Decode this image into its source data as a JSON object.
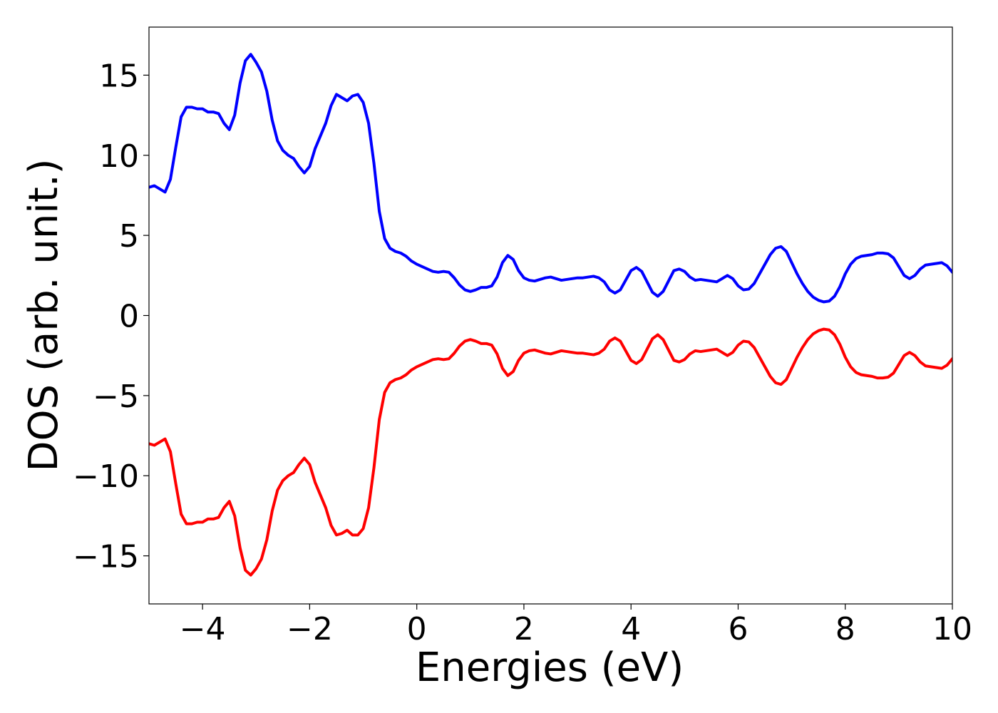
{
  "chart_data": {
    "type": "line",
    "title": "",
    "xlabel": "Energies (eV)",
    "ylabel": "DOS (arb. unit.)",
    "xlim": [
      -5,
      10
    ],
    "ylim": [
      -18,
      18
    ],
    "x_ticks": [
      {
        "value": -4,
        "label": "−4"
      },
      {
        "value": -2,
        "label": "−2"
      },
      {
        "value": 0,
        "label": "0"
      },
      {
        "value": 2,
        "label": "2"
      },
      {
        "value": 4,
        "label": "4"
      },
      {
        "value": 6,
        "label": "6"
      },
      {
        "value": 8,
        "label": "8"
      },
      {
        "value": 10,
        "label": "10"
      }
    ],
    "y_ticks": [
      {
        "value": 15,
        "label": "15"
      },
      {
        "value": 10,
        "label": "10"
      },
      {
        "value": 5,
        "label": "5"
      },
      {
        "value": 0,
        "label": "0"
      },
      {
        "value": -5,
        "label": "−5"
      },
      {
        "value": -10,
        "label": "−10"
      },
      {
        "value": -15,
        "label": "−15"
      }
    ],
    "grid": false,
    "legend": "none",
    "series": [
      {
        "color": "#0000ff",
        "points": [
          [
            -5.0,
            8.0
          ],
          [
            -4.9,
            8.1
          ],
          [
            -4.8,
            7.9
          ],
          [
            -4.7,
            7.7
          ],
          [
            -4.6,
            8.5
          ],
          [
            -4.5,
            10.5
          ],
          [
            -4.4,
            12.4
          ],
          [
            -4.3,
            13.0
          ],
          [
            -4.2,
            13.0
          ],
          [
            -4.1,
            12.9
          ],
          [
            -4.0,
            12.9
          ],
          [
            -3.9,
            12.7
          ],
          [
            -3.8,
            12.7
          ],
          [
            -3.7,
            12.6
          ],
          [
            -3.6,
            12.0
          ],
          [
            -3.5,
            11.6
          ],
          [
            -3.4,
            12.5
          ],
          [
            -3.3,
            14.5
          ],
          [
            -3.2,
            15.9
          ],
          [
            -3.1,
            16.3
          ],
          [
            -3.0,
            15.8
          ],
          [
            -2.9,
            15.2
          ],
          [
            -2.8,
            14.0
          ],
          [
            -2.7,
            12.2
          ],
          [
            -2.6,
            10.9
          ],
          [
            -2.5,
            10.3
          ],
          [
            -2.4,
            10.0
          ],
          [
            -2.3,
            9.8
          ],
          [
            -2.2,
            9.3
          ],
          [
            -2.1,
            8.9
          ],
          [
            -2.0,
            9.3
          ],
          [
            -1.9,
            10.4
          ],
          [
            -1.8,
            11.2
          ],
          [
            -1.7,
            12.0
          ],
          [
            -1.6,
            13.1
          ],
          [
            -1.5,
            13.8
          ],
          [
            -1.4,
            13.6
          ],
          [
            -1.3,
            13.4
          ],
          [
            -1.2,
            13.7
          ],
          [
            -1.1,
            13.8
          ],
          [
            -1.0,
            13.3
          ],
          [
            -0.9,
            12.0
          ],
          [
            -0.8,
            9.5
          ],
          [
            -0.7,
            6.5
          ],
          [
            -0.6,
            4.8
          ],
          [
            -0.5,
            4.2
          ],
          [
            -0.4,
            4.0
          ],
          [
            -0.3,
            3.9
          ],
          [
            -0.2,
            3.7
          ],
          [
            -0.1,
            3.4
          ],
          [
            0.0,
            3.2
          ],
          [
            0.1,
            3.05
          ],
          [
            0.2,
            2.9
          ],
          [
            0.3,
            2.75
          ],
          [
            0.4,
            2.7
          ],
          [
            0.5,
            2.75
          ],
          [
            0.6,
            2.7
          ],
          [
            0.7,
            2.35
          ],
          [
            0.8,
            1.9
          ],
          [
            0.9,
            1.6
          ],
          [
            1.0,
            1.5
          ],
          [
            1.1,
            1.6
          ],
          [
            1.2,
            1.75
          ],
          [
            1.3,
            1.75
          ],
          [
            1.4,
            1.85
          ],
          [
            1.5,
            2.4
          ],
          [
            1.6,
            3.3
          ],
          [
            1.7,
            3.75
          ],
          [
            1.8,
            3.5
          ],
          [
            1.9,
            2.8
          ],
          [
            2.0,
            2.35
          ],
          [
            2.1,
            2.2
          ],
          [
            2.2,
            2.15
          ],
          [
            2.3,
            2.25
          ],
          [
            2.4,
            2.35
          ],
          [
            2.5,
            2.4
          ],
          [
            2.6,
            2.3
          ],
          [
            2.7,
            2.2
          ],
          [
            2.8,
            2.25
          ],
          [
            2.9,
            2.3
          ],
          [
            3.0,
            2.35
          ],
          [
            3.1,
            2.35
          ],
          [
            3.2,
            2.4
          ],
          [
            3.3,
            2.45
          ],
          [
            3.4,
            2.35
          ],
          [
            3.5,
            2.1
          ],
          [
            3.6,
            1.6
          ],
          [
            3.7,
            1.4
          ],
          [
            3.8,
            1.6
          ],
          [
            3.9,
            2.2
          ],
          [
            4.0,
            2.8
          ],
          [
            4.1,
            3.0
          ],
          [
            4.2,
            2.75
          ],
          [
            4.3,
            2.1
          ],
          [
            4.4,
            1.45
          ],
          [
            4.5,
            1.2
          ],
          [
            4.6,
            1.5
          ],
          [
            4.7,
            2.15
          ],
          [
            4.8,
            2.8
          ],
          [
            4.9,
            2.9
          ],
          [
            5.0,
            2.75
          ],
          [
            5.1,
            2.4
          ],
          [
            5.2,
            2.2
          ],
          [
            5.3,
            2.25
          ],
          [
            5.4,
            2.2
          ],
          [
            5.5,
            2.15
          ],
          [
            5.6,
            2.1
          ],
          [
            5.7,
            2.3
          ],
          [
            5.8,
            2.5
          ],
          [
            5.9,
            2.3
          ],
          [
            6.0,
            1.85
          ],
          [
            6.1,
            1.6
          ],
          [
            6.2,
            1.65
          ],
          [
            6.3,
            2.0
          ],
          [
            6.4,
            2.6
          ],
          [
            6.5,
            3.2
          ],
          [
            6.6,
            3.8
          ],
          [
            6.7,
            4.2
          ],
          [
            6.8,
            4.3
          ],
          [
            6.9,
            4.0
          ],
          [
            7.0,
            3.3
          ],
          [
            7.1,
            2.6
          ],
          [
            7.2,
            2.0
          ],
          [
            7.3,
            1.5
          ],
          [
            7.4,
            1.15
          ],
          [
            7.5,
            0.95
          ],
          [
            7.6,
            0.85
          ],
          [
            7.7,
            0.9
          ],
          [
            7.8,
            1.2
          ],
          [
            7.9,
            1.8
          ],
          [
            8.0,
            2.6
          ],
          [
            8.1,
            3.2
          ],
          [
            8.2,
            3.55
          ],
          [
            8.3,
            3.7
          ],
          [
            8.4,
            3.75
          ],
          [
            8.5,
            3.8
          ],
          [
            8.6,
            3.9
          ],
          [
            8.7,
            3.9
          ],
          [
            8.8,
            3.85
          ],
          [
            8.9,
            3.6
          ],
          [
            9.0,
            3.05
          ],
          [
            9.1,
            2.5
          ],
          [
            9.2,
            2.3
          ],
          [
            9.3,
            2.5
          ],
          [
            9.4,
            2.9
          ],
          [
            9.5,
            3.15
          ],
          [
            9.6,
            3.2
          ],
          [
            9.7,
            3.25
          ],
          [
            9.8,
            3.3
          ],
          [
            9.9,
            3.1
          ],
          [
            10.0,
            2.7
          ]
        ]
      },
      {
        "color": "#ff0000",
        "points": [
          [
            -5.0,
            -8.0
          ],
          [
            -4.9,
            -8.1
          ],
          [
            -4.8,
            -7.9
          ],
          [
            -4.7,
            -7.7
          ],
          [
            -4.6,
            -8.5
          ],
          [
            -4.5,
            -10.5
          ],
          [
            -4.4,
            -12.4
          ],
          [
            -4.3,
            -13.0
          ],
          [
            -4.2,
            -13.0
          ],
          [
            -4.1,
            -12.9
          ],
          [
            -4.0,
            -12.9
          ],
          [
            -3.9,
            -12.7
          ],
          [
            -3.8,
            -12.7
          ],
          [
            -3.7,
            -12.6
          ],
          [
            -3.6,
            -12.0
          ],
          [
            -3.5,
            -11.6
          ],
          [
            -3.4,
            -12.5
          ],
          [
            -3.3,
            -14.5
          ],
          [
            -3.2,
            -15.9
          ],
          [
            -3.1,
            -16.2
          ],
          [
            -3.0,
            -15.8
          ],
          [
            -2.9,
            -15.2
          ],
          [
            -2.8,
            -14.0
          ],
          [
            -2.7,
            -12.2
          ],
          [
            -2.6,
            -10.9
          ],
          [
            -2.5,
            -10.3
          ],
          [
            -2.4,
            -10.0
          ],
          [
            -2.3,
            -9.8
          ],
          [
            -2.2,
            -9.3
          ],
          [
            -2.1,
            -8.9
          ],
          [
            -2.0,
            -9.3
          ],
          [
            -1.9,
            -10.4
          ],
          [
            -1.8,
            -11.2
          ],
          [
            -1.7,
            -12.0
          ],
          [
            -1.6,
            -13.1
          ],
          [
            -1.5,
            -13.7
          ],
          [
            -1.4,
            -13.6
          ],
          [
            -1.3,
            -13.4
          ],
          [
            -1.2,
            -13.7
          ],
          [
            -1.1,
            -13.7
          ],
          [
            -1.0,
            -13.3
          ],
          [
            -0.9,
            -12.0
          ],
          [
            -0.8,
            -9.5
          ],
          [
            -0.7,
            -6.5
          ],
          [
            -0.6,
            -4.8
          ],
          [
            -0.5,
            -4.2
          ],
          [
            -0.4,
            -4.0
          ],
          [
            -0.3,
            -3.9
          ],
          [
            -0.2,
            -3.7
          ],
          [
            -0.1,
            -3.4
          ],
          [
            0.0,
            -3.2
          ],
          [
            0.1,
            -3.05
          ],
          [
            0.2,
            -2.9
          ],
          [
            0.3,
            -2.75
          ],
          [
            0.4,
            -2.7
          ],
          [
            0.5,
            -2.75
          ],
          [
            0.6,
            -2.7
          ],
          [
            0.7,
            -2.35
          ],
          [
            0.8,
            -1.9
          ],
          [
            0.9,
            -1.6
          ],
          [
            1.0,
            -1.5
          ],
          [
            1.1,
            -1.6
          ],
          [
            1.2,
            -1.75
          ],
          [
            1.3,
            -1.75
          ],
          [
            1.4,
            -1.85
          ],
          [
            1.5,
            -2.4
          ],
          [
            1.6,
            -3.3
          ],
          [
            1.7,
            -3.75
          ],
          [
            1.8,
            -3.5
          ],
          [
            1.9,
            -2.8
          ],
          [
            2.0,
            -2.35
          ],
          [
            2.1,
            -2.2
          ],
          [
            2.2,
            -2.15
          ],
          [
            2.3,
            -2.25
          ],
          [
            2.4,
            -2.35
          ],
          [
            2.5,
            -2.4
          ],
          [
            2.6,
            -2.3
          ],
          [
            2.7,
            -2.2
          ],
          [
            2.8,
            -2.25
          ],
          [
            2.9,
            -2.3
          ],
          [
            3.0,
            -2.35
          ],
          [
            3.1,
            -2.35
          ],
          [
            3.2,
            -2.4
          ],
          [
            3.3,
            -2.45
          ],
          [
            3.4,
            -2.35
          ],
          [
            3.5,
            -2.1
          ],
          [
            3.6,
            -1.6
          ],
          [
            3.7,
            -1.4
          ],
          [
            3.8,
            -1.6
          ],
          [
            3.9,
            -2.2
          ],
          [
            4.0,
            -2.8
          ],
          [
            4.1,
            -3.0
          ],
          [
            4.2,
            -2.75
          ],
          [
            4.3,
            -2.1
          ],
          [
            4.4,
            -1.45
          ],
          [
            4.5,
            -1.2
          ],
          [
            4.6,
            -1.5
          ],
          [
            4.7,
            -2.15
          ],
          [
            4.8,
            -2.8
          ],
          [
            4.9,
            -2.9
          ],
          [
            5.0,
            -2.75
          ],
          [
            5.1,
            -2.4
          ],
          [
            5.2,
            -2.2
          ],
          [
            5.3,
            -2.25
          ],
          [
            5.4,
            -2.2
          ],
          [
            5.5,
            -2.15
          ],
          [
            5.6,
            -2.1
          ],
          [
            5.7,
            -2.3
          ],
          [
            5.8,
            -2.5
          ],
          [
            5.9,
            -2.3
          ],
          [
            6.0,
            -1.85
          ],
          [
            6.1,
            -1.6
          ],
          [
            6.2,
            -1.65
          ],
          [
            6.3,
            -2.0
          ],
          [
            6.4,
            -2.6
          ],
          [
            6.5,
            -3.2
          ],
          [
            6.6,
            -3.8
          ],
          [
            6.7,
            -4.2
          ],
          [
            6.8,
            -4.3
          ],
          [
            6.9,
            -4.0
          ],
          [
            7.0,
            -3.3
          ],
          [
            7.1,
            -2.6
          ],
          [
            7.2,
            -2.0
          ],
          [
            7.3,
            -1.5
          ],
          [
            7.4,
            -1.15
          ],
          [
            7.5,
            -0.95
          ],
          [
            7.6,
            -0.85
          ],
          [
            7.7,
            -0.9
          ],
          [
            7.8,
            -1.2
          ],
          [
            7.9,
            -1.8
          ],
          [
            8.0,
            -2.6
          ],
          [
            8.1,
            -3.2
          ],
          [
            8.2,
            -3.55
          ],
          [
            8.3,
            -3.7
          ],
          [
            8.4,
            -3.75
          ],
          [
            8.5,
            -3.8
          ],
          [
            8.6,
            -3.9
          ],
          [
            8.7,
            -3.9
          ],
          [
            8.8,
            -3.85
          ],
          [
            8.9,
            -3.6
          ],
          [
            9.0,
            -3.05
          ],
          [
            9.1,
            -2.5
          ],
          [
            9.2,
            -2.3
          ],
          [
            9.3,
            -2.5
          ],
          [
            9.4,
            -2.9
          ],
          [
            9.5,
            -3.15
          ],
          [
            9.6,
            -3.2
          ],
          [
            9.7,
            -3.25
          ],
          [
            9.8,
            -3.3
          ],
          [
            9.9,
            -3.1
          ],
          [
            10.0,
            -2.7
          ]
        ]
      }
    ]
  }
}
